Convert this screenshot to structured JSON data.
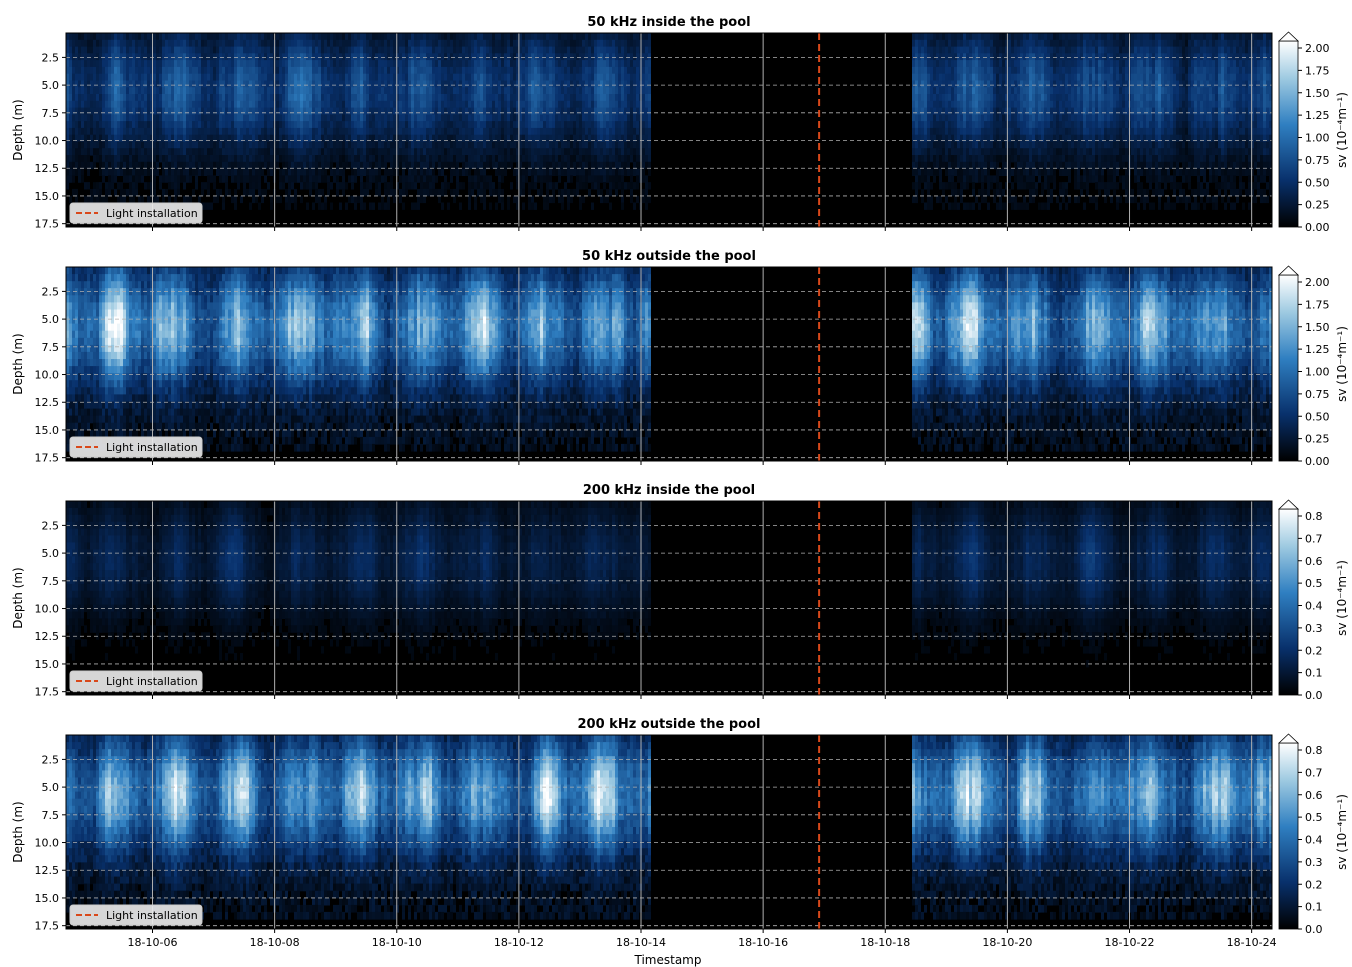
{
  "figure": {
    "xlabel": "Timestamp",
    "x_ticks": [
      "18-10-06",
      "18-10-08",
      "18-10-10",
      "18-10-12",
      "18-10-14",
      "18-10-16",
      "18-10-18",
      "18-10-20",
      "18-10-22",
      "18-10-24"
    ],
    "light_installation_label": "Light installation",
    "light_line_color": "#d9481a"
  },
  "chart_data": [
    {
      "type": "heatmap",
      "title": "50 kHz inside the pool",
      "xlabel": "",
      "ylabel": "Depth (m)",
      "yticks": [
        "2.5",
        "5.0",
        "7.5",
        "10.0",
        "12.5",
        "15.0",
        "17.5"
      ],
      "ylim": [
        17.8,
        0.3
      ],
      "x_range": [
        "18-10-04 14:00",
        "18-10-24 08:00"
      ],
      "data_gap": [
        "18-10-14 03:00",
        "18-10-18 10:00"
      ],
      "light_installation": "18-10-16 22:00",
      "colorbar": {
        "label": "sv (10⁻⁴m⁻¹)",
        "ticks": [
          "0.00",
          "0.25",
          "0.50",
          "0.75",
          "1.00",
          "1.25",
          "1.50",
          "1.75",
          "2.00"
        ],
        "max": 2.0,
        "colormap": "dark-blue-white"
      },
      "intensity": "low",
      "seafloor_depth": 16.2
    },
    {
      "type": "heatmap",
      "title": "50 kHz outside the pool",
      "xlabel": "",
      "ylabel": "Depth (m)",
      "yticks": [
        "2.5",
        "5.0",
        "7.5",
        "10.0",
        "12.5",
        "15.0",
        "17.5"
      ],
      "ylim": [
        17.8,
        0.3
      ],
      "x_range": [
        "18-10-04 14:00",
        "18-10-24 08:00"
      ],
      "data_gap": [
        "18-10-14 03:00",
        "18-10-18 10:00"
      ],
      "light_installation": "18-10-16 22:00",
      "colorbar": {
        "label": "sv (10⁻⁴m⁻¹)",
        "ticks": [
          "0.00",
          "0.25",
          "0.50",
          "0.75",
          "1.00",
          "1.25",
          "1.50",
          "1.75",
          "2.00"
        ],
        "max": 2.0,
        "colormap": "dark-blue-white"
      },
      "intensity": "high",
      "seafloor_depth": 16.9
    },
    {
      "type": "heatmap",
      "title": "200 kHz inside the pool",
      "xlabel": "",
      "ylabel": "Depth (m)",
      "yticks": [
        "2.5",
        "5.0",
        "7.5",
        "10.0",
        "12.5",
        "15.0",
        "17.5"
      ],
      "ylim": [
        17.8,
        0.3
      ],
      "x_range": [
        "18-10-04 14:00",
        "18-10-24 08:00"
      ],
      "data_gap": [
        "18-10-14 03:00",
        "18-10-18 10:00"
      ],
      "light_installation": "18-10-16 22:00",
      "colorbar": {
        "label": "sv (10⁻⁴m⁻¹)",
        "ticks": [
          "0.0",
          "0.1",
          "0.2",
          "0.3",
          "0.4",
          "0.5",
          "0.6",
          "0.7",
          "0.8"
        ],
        "max": 0.8,
        "colormap": "dark-blue-white"
      },
      "intensity": "very-low",
      "seafloor_depth": 16.5
    },
    {
      "type": "heatmap",
      "title": "200 kHz outside the pool",
      "xlabel": "Timestamp",
      "ylabel": "Depth (m)",
      "yticks": [
        "2.5",
        "5.0",
        "7.5",
        "10.0",
        "12.5",
        "15.0",
        "17.5"
      ],
      "ylim": [
        17.8,
        0.3
      ],
      "x_range": [
        "18-10-04 14:00",
        "18-10-24 08:00"
      ],
      "data_gap": [
        "18-10-14 03:00",
        "18-10-18 10:00"
      ],
      "light_installation": "18-10-16 22:00",
      "colorbar": {
        "label": "sv (10⁻⁴m⁻¹)",
        "ticks": [
          "0.0",
          "0.1",
          "0.2",
          "0.3",
          "0.4",
          "0.5",
          "0.6",
          "0.7",
          "0.8"
        ],
        "max": 0.8,
        "colormap": "dark-blue-white"
      },
      "intensity": "high",
      "seafloor_depth": 16.9
    }
  ]
}
